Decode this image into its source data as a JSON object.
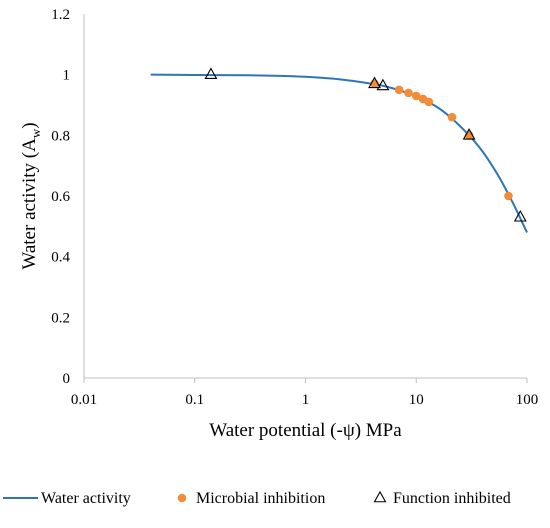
{
  "chart_data": {
    "type": "scatter",
    "title": "",
    "xlabel": "Water potential (-ψ) MPa",
    "ylabel_main": "Water activity (A",
    "ylabel_sub": "w",
    "ylabel_tail": ")",
    "xscale": "log",
    "xlim": [
      0.01,
      100
    ],
    "ylim": [
      0,
      1.2
    ],
    "x_ticks": [
      0.01,
      0.1,
      1,
      10,
      100
    ],
    "x_tick_labels": [
      "0.01",
      "0.1",
      "1",
      "10",
      "100"
    ],
    "y_ticks": [
      0,
      0.2,
      0.4,
      0.6,
      0.8,
      1,
      1.2
    ],
    "y_tick_labels": [
      "0",
      "0.2",
      "0.4",
      "0.6",
      "0.8",
      "1",
      "1.2"
    ],
    "grid": false,
    "legend_position": "bottom",
    "series": [
      {
        "name": "Water activity",
        "kind": "line",
        "color": "#2E75B6",
        "x": [
          0.04,
          0.1,
          0.3,
          0.6,
          1,
          2,
          4,
          6,
          10,
          15,
          20,
          30,
          40,
          50,
          60,
          70,
          80,
          90,
          100
        ],
        "y": [
          1.0,
          0.999,
          0.998,
          0.996,
          0.993,
          0.985,
          0.97,
          0.956,
          0.929,
          0.896,
          0.862,
          0.8,
          0.745,
          0.692,
          0.643,
          0.597,
          0.555,
          0.515,
          0.48
        ]
      },
      {
        "name": "Microbial inhibition",
        "kind": "scatter",
        "marker": "circle",
        "color": "#F28C38",
        "x": [
          4.2,
          7,
          8.5,
          10,
          11.5,
          13,
          21,
          30,
          68
        ],
        "y": [
          0.97,
          0.95,
          0.94,
          0.93,
          0.92,
          0.91,
          0.86,
          0.8,
          0.6
        ]
      },
      {
        "name": "Function inhibited",
        "kind": "scatter",
        "marker": "triangle",
        "color": "#000000",
        "x": [
          0.14,
          4.2,
          5,
          30,
          87
        ],
        "y": [
          1.0,
          0.97,
          0.963,
          0.8,
          0.53
        ]
      }
    ]
  }
}
